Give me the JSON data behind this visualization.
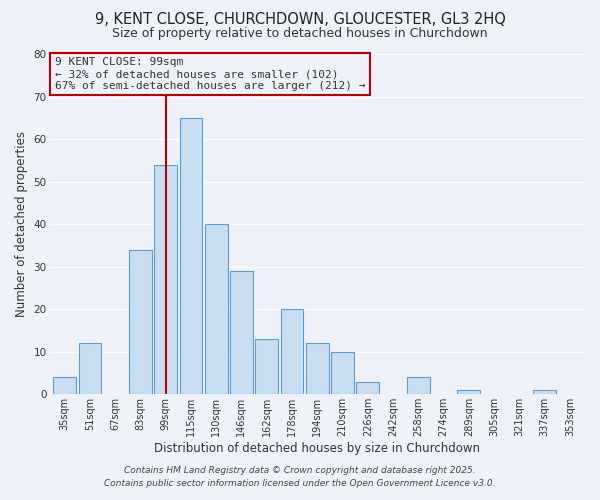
{
  "title1": "9, KENT CLOSE, CHURCHDOWN, GLOUCESTER, GL3 2HQ",
  "title2": "Size of property relative to detached houses in Churchdown",
  "xlabel": "Distribution of detached houses by size in Churchdown",
  "ylabel": "Number of detached properties",
  "categories": [
    "35sqm",
    "51sqm",
    "67sqm",
    "83sqm",
    "99sqm",
    "115sqm",
    "130sqm",
    "146sqm",
    "162sqm",
    "178sqm",
    "194sqm",
    "210sqm",
    "226sqm",
    "242sqm",
    "258sqm",
    "274sqm",
    "289sqm",
    "305sqm",
    "321sqm",
    "337sqm",
    "353sqm"
  ],
  "values": [
    4,
    12,
    0,
    34,
    54,
    65,
    40,
    29,
    13,
    20,
    12,
    10,
    3,
    0,
    4,
    0,
    1,
    0,
    0,
    1,
    0
  ],
  "highlight_index": 4,
  "bar_color": "#c8ddf0",
  "bar_edge_color": "#5b9bd5",
  "highlight_bar_edge_color": "#c00000",
  "annotation_box_edge_color": "#c00000",
  "annotation_line1": "9 KENT CLOSE: 99sqm",
  "annotation_line2": "← 32% of detached houses are smaller (102)",
  "annotation_line3": "67% of semi-detached houses are larger (212) →",
  "footer1": "Contains HM Land Registry data © Crown copyright and database right 2025.",
  "footer2": "Contains public sector information licensed under the Open Government Licence v3.0.",
  "ylim": [
    0,
    80
  ],
  "yticks": [
    0,
    10,
    20,
    30,
    40,
    50,
    60,
    70,
    80
  ],
  "background_color": "#eef2f8",
  "grid_color": "#ffffff",
  "title_fontsize": 10.5,
  "subtitle_fontsize": 9,
  "axis_label_fontsize": 8.5,
  "tick_fontsize": 7,
  "annotation_fontsize": 8,
  "footer_fontsize": 6.5
}
